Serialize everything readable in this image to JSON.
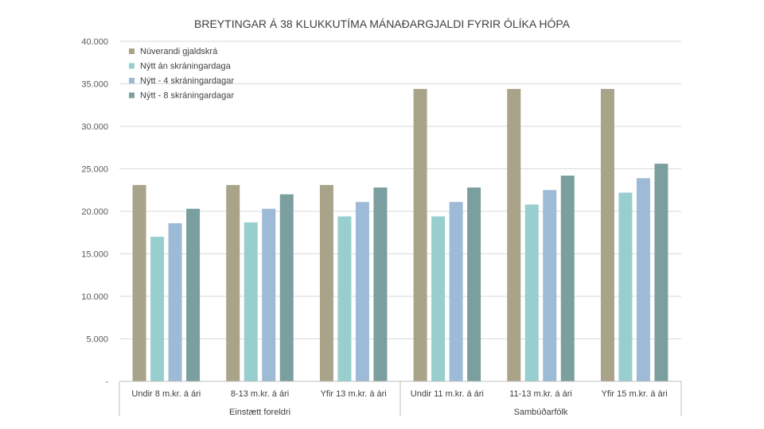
{
  "chart_data": {
    "type": "bar",
    "title": "BREYTINGAR Á 38 KLUKKUTÍMA MÁNAÐARGJALDI FYRIR ÓLÍKA HÓPA",
    "categories": [
      "Undir 8 m.kr. á ári",
      "8-13 m.kr. á ári",
      "Yfir 13 m.kr. á ári",
      "Undir 11 m.kr. á ári",
      "11-13 m.kr. á ári",
      "Yfir 15 m.kr. á ári"
    ],
    "groups": [
      {
        "label": "Einstætt foreldri",
        "categories": [
          0,
          1,
          2
        ]
      },
      {
        "label": "Sambúðarfólk",
        "categories": [
          3,
          4,
          5
        ]
      }
    ],
    "series": [
      {
        "name": "Núverandi gjaldskrá",
        "color": "#a8a389",
        "values": [
          23100,
          23100,
          23100,
          34400,
          34400,
          34400
        ]
      },
      {
        "name": "Nýtt án skráningardaga",
        "color": "#98cece",
        "values": [
          17000,
          18700,
          19400,
          19400,
          20800,
          22200
        ]
      },
      {
        "name": "Nýtt - 4 skráningardagar",
        "color": "#9dbbd6",
        "values": [
          18600,
          20300,
          21100,
          21100,
          22500,
          23900
        ]
      },
      {
        "name": "Nýtt - 8 skráningardagar",
        "color": "#7b9e9e",
        "values": [
          20300,
          22000,
          22800,
          22800,
          24200,
          25600
        ]
      }
    ],
    "ylim": [
      0,
      40000
    ],
    "yticks": [
      {
        "value": 0,
        "label": "-"
      },
      {
        "value": 5000,
        "label": "5.000"
      },
      {
        "value": 10000,
        "label": "10.000"
      },
      {
        "value": 15000,
        "label": "15.000"
      },
      {
        "value": 20000,
        "label": "20.000"
      },
      {
        "value": 25000,
        "label": "25.000"
      },
      {
        "value": 30000,
        "label": "30.000"
      },
      {
        "value": 35000,
        "label": "35.000"
      },
      {
        "value": 40000,
        "label": "40.000"
      }
    ],
    "grid": true,
    "legend": "top-left"
  }
}
